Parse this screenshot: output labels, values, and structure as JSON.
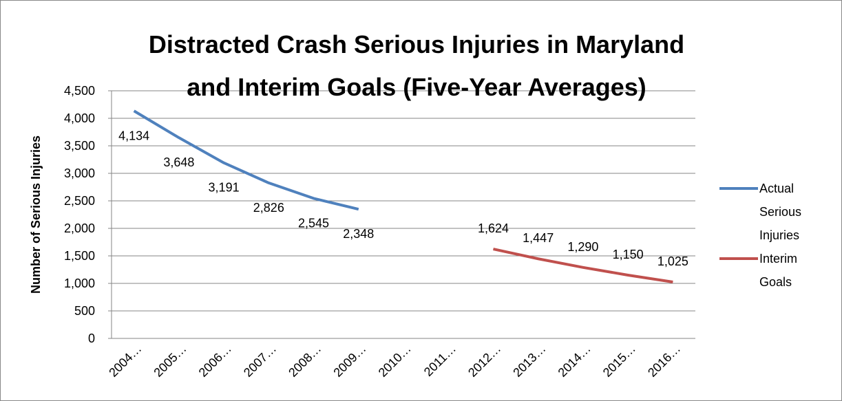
{
  "chart_data": {
    "type": "line",
    "title": [
      "Distracted Crash Serious Injuries in Maryland",
      "and Interim Goals  (Five-Year Averages)"
    ],
    "y_label": "Number of Serious Injuries",
    "categories": [
      "2004…",
      "2005…",
      "2006…",
      "2007…",
      "2008…",
      "2009…",
      "2010…",
      "2011…",
      "2012…",
      "2013…",
      "2014…",
      "2015…",
      "2016…"
    ],
    "series": [
      {
        "name": "Actual Serious Injuries",
        "color": "#4f81bd",
        "values": [
          4134,
          3648,
          3191,
          2826,
          2545,
          2348,
          null,
          null,
          null,
          null,
          null,
          null,
          null
        ],
        "value_labels": [
          "4,134",
          "3,648",
          "3,191",
          "2,826",
          "2,545",
          "2,348",
          null,
          null,
          null,
          null,
          null,
          null,
          null
        ]
      },
      {
        "name": "Interim Goals",
        "color": "#c0504d",
        "values": [
          null,
          null,
          null,
          null,
          null,
          null,
          null,
          null,
          1624,
          1447,
          1290,
          1150,
          1025
        ],
        "value_labels": [
          null,
          null,
          null,
          null,
          null,
          null,
          null,
          null,
          "1,624",
          "1,447",
          "1,290",
          "1,150",
          "1,025"
        ]
      }
    ],
    "ylim": [
      0,
      4500
    ],
    "yticks": [
      0,
      500,
      {
        "value": 1000,
        "label": "1,000"
      },
      {
        "value": 1500,
        "label": "1,500"
      },
      {
        "value": 2000,
        "label": "2,000"
      },
      {
        "value": 2500,
        "label": "2,500"
      },
      {
        "value": 3000,
        "label": "3,000"
      },
      {
        "value": 3500,
        "label": "3,500"
      },
      {
        "value": 4000,
        "label": "4,000"
      },
      {
        "value": 4500,
        "label": "4,500"
      }
    ],
    "grid": true,
    "legend": "right"
  }
}
